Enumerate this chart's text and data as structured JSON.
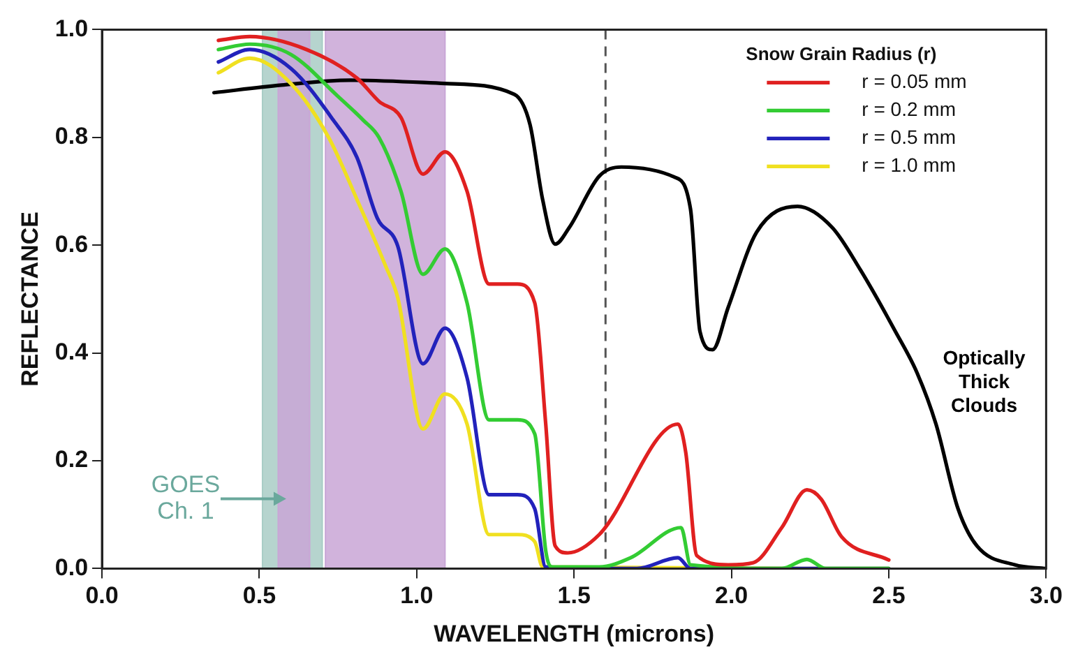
{
  "chart_data": {
    "type": "line",
    "xlabel": "WAVELENGTH (microns)",
    "ylabel": "REFLECTANCE",
    "legend_title": "Snow Grain Radius (r)",
    "legend": "top right",
    "grid": false,
    "marker": "none",
    "line_style": "solid",
    "xlim": [
      0,
      3
    ],
    "ylim": [
      0,
      1
    ],
    "xticks": [
      {
        "value": 0,
        "label": "0.0"
      },
      {
        "value": 0.5,
        "label": "0.5"
      },
      {
        "value": 1,
        "label": "1.0"
      },
      {
        "value": 1.5,
        "label": "1.5"
      },
      {
        "value": 2,
        "label": "2.0"
      },
      {
        "value": 2.5,
        "label": "2.5"
      },
      {
        "value": 3,
        "label": "3.0"
      }
    ],
    "yticks": [
      {
        "value": 0,
        "label": "0.0"
      },
      {
        "value": 0.2,
        "label": "0.2"
      },
      {
        "value": 0.4,
        "label": "0.4"
      },
      {
        "value": 0.6,
        "label": "0.6"
      },
      {
        "value": 0.8,
        "label": "0.8"
      },
      {
        "value": 1,
        "label": "1.0"
      }
    ],
    "bands": [
      {
        "axis": "x",
        "from": 0.51,
        "to": 0.7,
        "label": "GOES Ch. 1",
        "color": "#a9cdc6"
      },
      {
        "axis": "x",
        "from": 0.56,
        "to": 0.66,
        "color": "#c9a6d6"
      },
      {
        "axis": "x",
        "from": 0.71,
        "to": 1.09,
        "color": "#c9a6d6"
      }
    ],
    "ref_lines": [
      {
        "axis": "x",
        "value": 1.6,
        "line_style": "dashed",
        "color": "#555555"
      }
    ],
    "series": [
      {
        "name": "r = 0.05 mm",
        "color": "#e02020",
        "x": [
          0.37,
          0.47,
          0.65,
          0.81,
          0.88,
          0.95,
          1.02,
          1.09,
          1.16,
          1.23,
          1.32,
          1.375,
          1.41,
          1.44,
          1.48,
          1.58,
          1.83,
          1.855,
          1.89,
          1.99,
          2.07,
          2.16,
          2.24,
          2.285,
          2.35,
          2.5
        ],
        "values": [
          0.98,
          0.987,
          0.963,
          0.91,
          0.867,
          0.837,
          0.732,
          0.773,
          0.7,
          0.528,
          0.528,
          0.493,
          0.268,
          0.042,
          0.029,
          0.063,
          0.268,
          0.215,
          0.024,
          0.007,
          0.011,
          0.076,
          0.146,
          0.129,
          0.059,
          0.016
        ]
      },
      {
        "name": "r = 0.2 mm",
        "color": "#33cc33",
        "x": [
          0.37,
          0.47,
          0.6,
          0.75,
          0.83,
          0.88,
          0.95,
          1.02,
          1.09,
          1.16,
          1.23,
          1.32,
          1.375,
          1.41,
          1.43,
          1.58,
          1.68,
          1.84,
          1.87,
          2.16,
          2.24,
          2.3,
          2.5
        ],
        "values": [
          0.963,
          0.973,
          0.954,
          0.876,
          0.832,
          0.8,
          0.7,
          0.546,
          0.593,
          0.493,
          0.276,
          0.276,
          0.25,
          0.033,
          0.003,
          0.003,
          0.02,
          0.076,
          0.007,
          0,
          0.017,
          0,
          0
        ]
      },
      {
        "name": "r = 0.5 mm",
        "color": "#2222bb",
        "x": [
          0.37,
          0.47,
          0.6,
          0.735,
          0.81,
          0.875,
          0.94,
          1.02,
          1.09,
          1.16,
          1.23,
          1.32,
          1.375,
          1.41,
          1.7,
          1.83,
          1.87,
          2.5
        ],
        "values": [
          0.94,
          0.963,
          0.928,
          0.832,
          0.763,
          0.65,
          0.598,
          0.38,
          0.446,
          0.354,
          0.137,
          0.137,
          0.111,
          0.003,
          0,
          0.02,
          0,
          0
        ]
      },
      {
        "name": "r = 1.0 mm",
        "color": "#f0e020",
        "x": [
          0.37,
          0.47,
          0.6,
          0.72,
          0.81,
          0.9,
          0.94,
          1.02,
          1.09,
          1.16,
          1.23,
          1.32,
          1.375,
          1.4,
          2.5
        ],
        "values": [
          0.92,
          0.947,
          0.9,
          0.8,
          0.685,
          0.563,
          0.502,
          0.259,
          0.324,
          0.268,
          0.063,
          0.063,
          0.05,
          0.003,
          0
        ]
      },
      {
        "name": "Optically Thick Clouds",
        "color": "#000000",
        "x": [
          0.356,
          0.57,
          0.79,
          1.09,
          1.31,
          1.36,
          1.4,
          1.44,
          1.485,
          1.58,
          1.65,
          1.82,
          1.87,
          1.9,
          1.94,
          1.99,
          2.08,
          2.21,
          2.32,
          2.41,
          2.52,
          2.59,
          2.65,
          2.72,
          2.78,
          2.9,
          3.0
        ],
        "values": [
          0.883,
          0.897,
          0.906,
          0.9,
          0.88,
          0.824,
          0.685,
          0.602,
          0.633,
          0.728,
          0.745,
          0.726,
          0.667,
          0.44,
          0.406,
          0.485,
          0.624,
          0.672,
          0.633,
          0.554,
          0.441,
          0.363,
          0.268,
          0.111,
          0.042,
          0.007,
          0
        ]
      }
    ]
  }
}
